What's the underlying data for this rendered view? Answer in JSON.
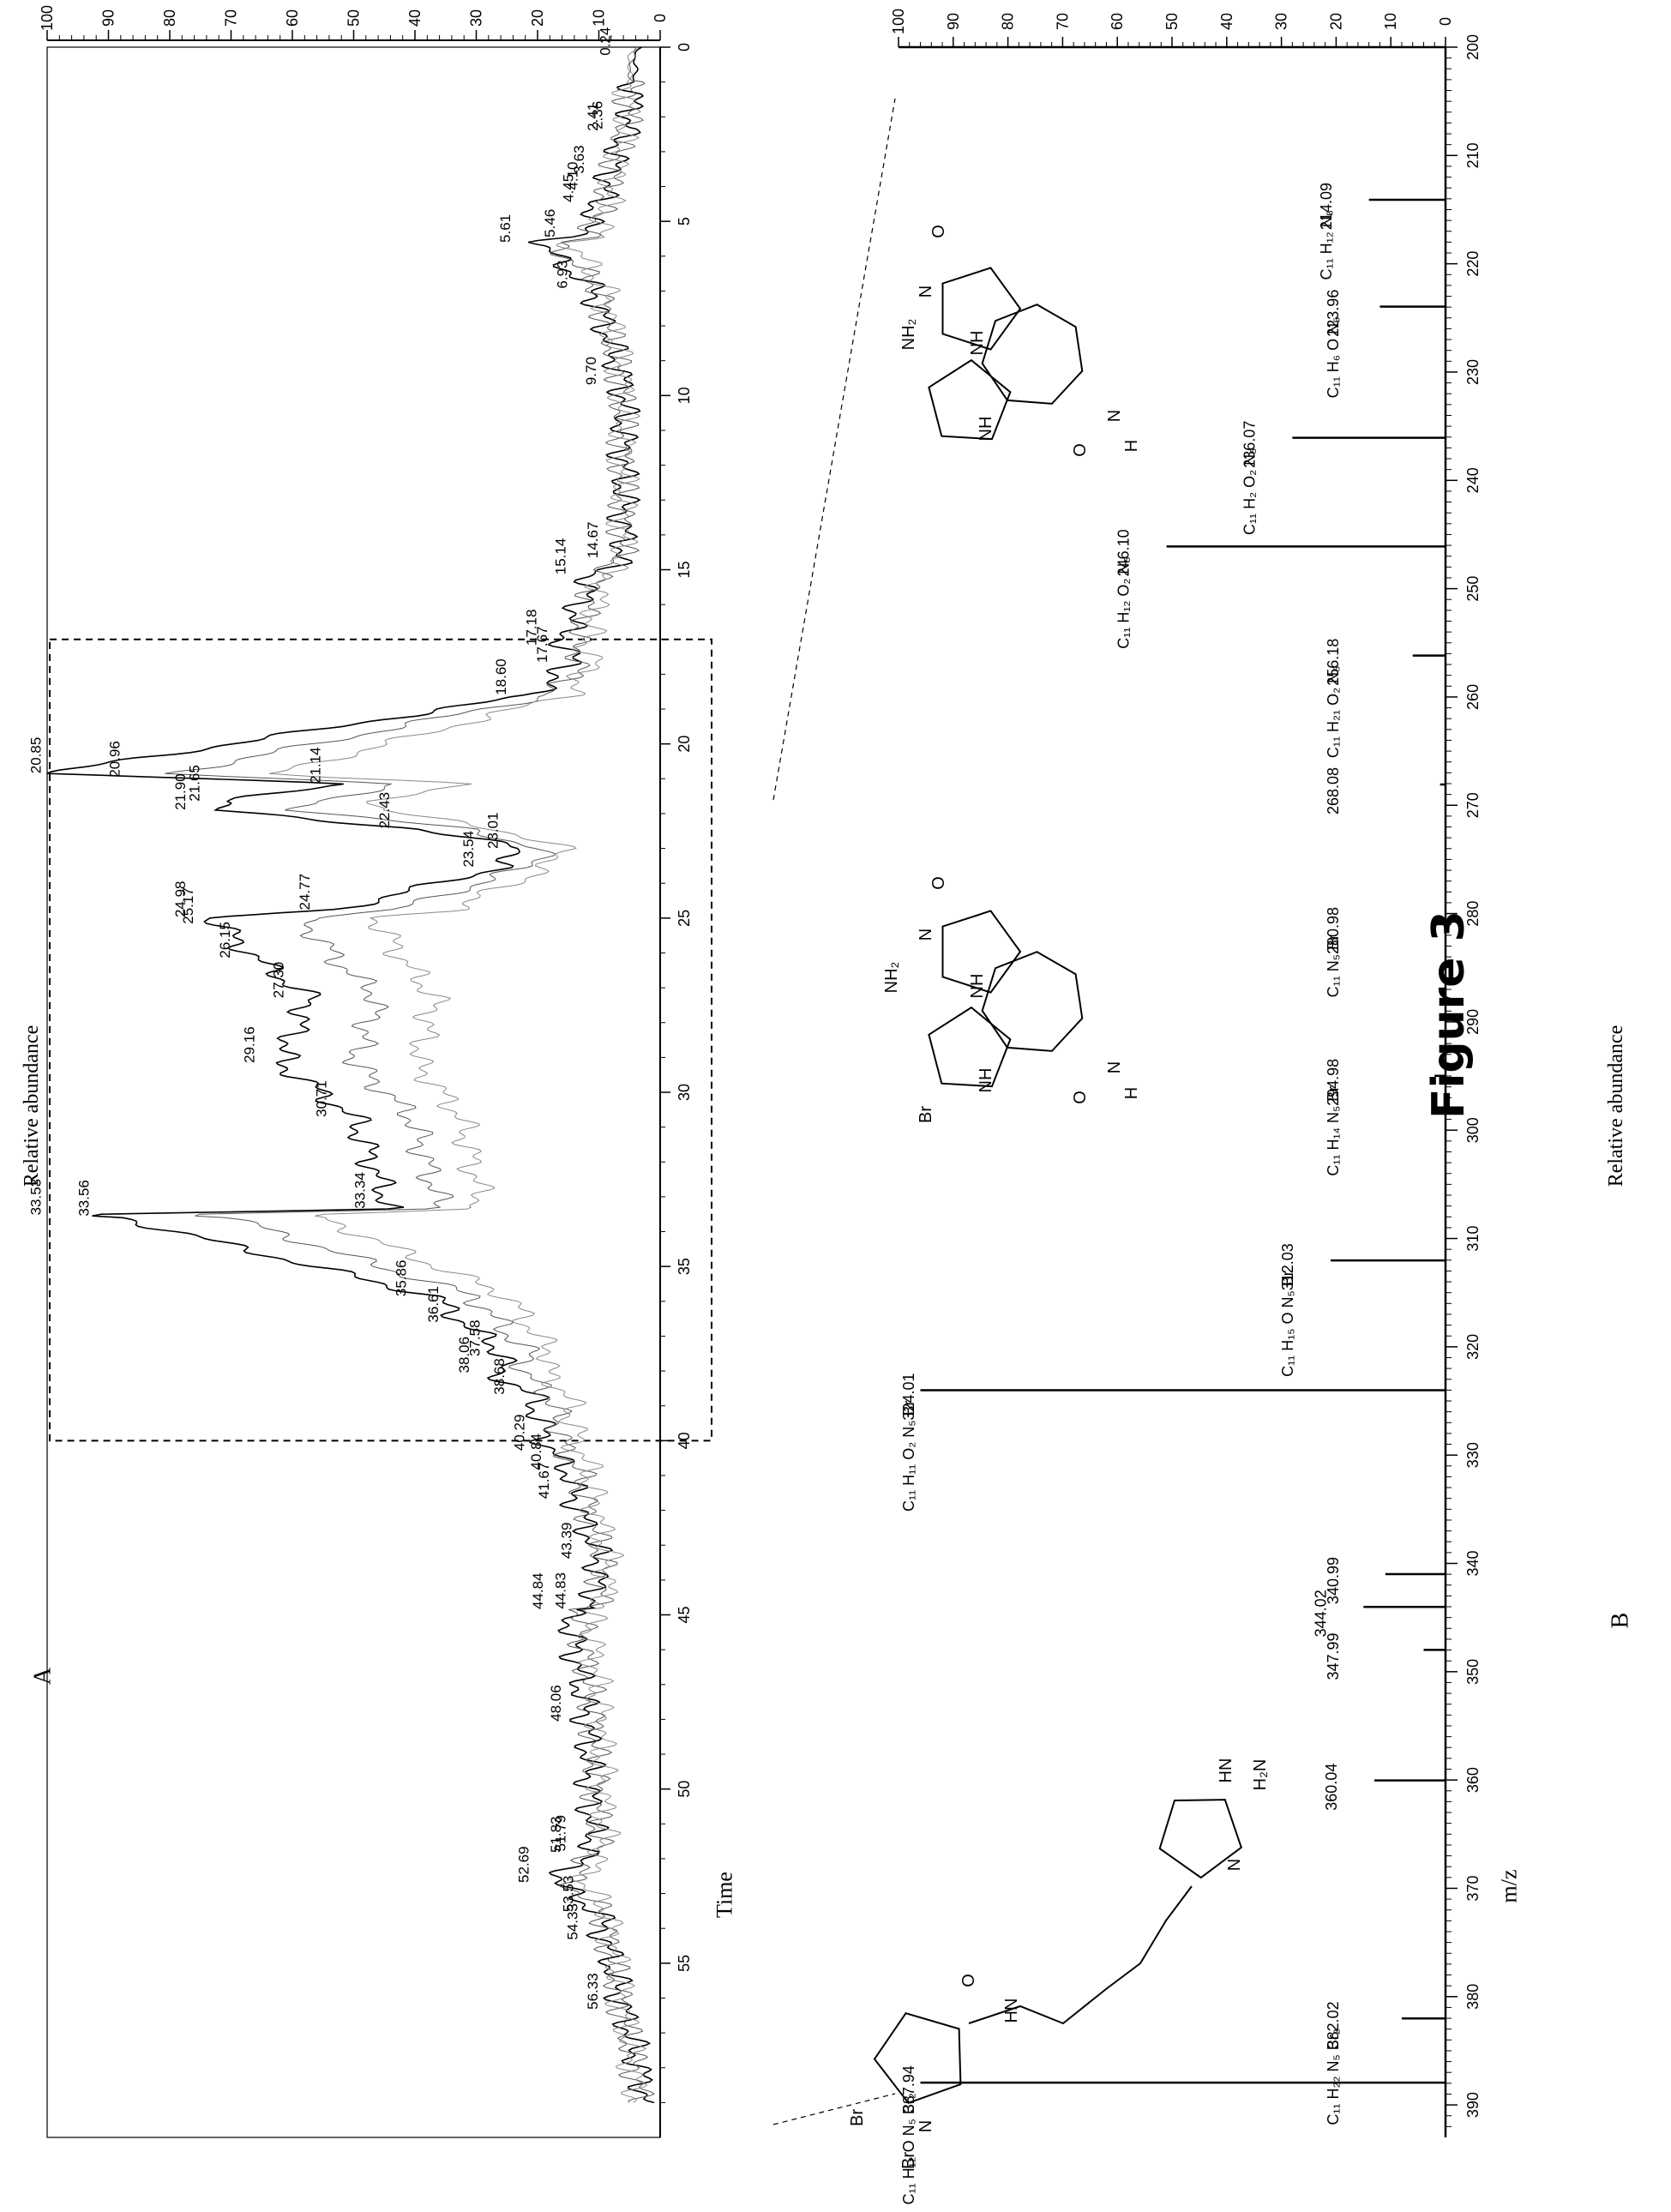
{
  "figure": {
    "title": "Figure 3"
  },
  "panels": {
    "a": {
      "label": "A",
      "xlabel": "Time",
      "ylabel": "Relative abundance",
      "y_ticks": [
        "0",
        "10",
        "20",
        "30",
        "40",
        "50",
        "60",
        "70",
        "80",
        "90",
        "100"
      ],
      "x_ticks": [
        "0",
        "5",
        "10",
        "15",
        "20",
        "25",
        "30",
        "35",
        "40",
        "45",
        "50",
        "55"
      ],
      "peak_labels": [
        "0.24",
        "2.36",
        "2.41",
        "3.63",
        "4.45",
        "4.10",
        "5.46",
        "5.61",
        "6.93",
        "9.70",
        "14.67",
        "15.14",
        "17.18",
        "17.67",
        "18.60",
        "20.85",
        "20.96",
        "21.14",
        "21.65",
        "21.90",
        "22.43",
        "23.54",
        "24.77",
        "24.98",
        "25.17",
        "23.01",
        "26.15",
        "27.30",
        "29.16",
        "30.71",
        "33.34",
        "33.53",
        "33.56",
        "35.86",
        "36.61",
        "37.58",
        "38.06",
        "38.68",
        "40.29",
        "40.84",
        "41.67",
        "43.39",
        "44.84",
        "44.83",
        "48.06",
        "51.79",
        "51.83",
        "52.69",
        "53.53",
        "54.33",
        "56.33"
      ]
    },
    "b": {
      "label": "B",
      "xlabel": "m/z",
      "ylabel": "Relative abundance",
      "y_ticks": [
        "0",
        "10",
        "20",
        "30",
        "40",
        "50",
        "60",
        "70",
        "80",
        "90",
        "100"
      ],
      "x_ticks": [
        "200",
        "210",
        "220",
        "230",
        "240",
        "250",
        "260",
        "270",
        "280",
        "290",
        "300",
        "310",
        "320",
        "330",
        "340",
        "350",
        "360",
        "370",
        "380",
        "390"
      ],
      "peaks": [
        {
          "mz": "214.09",
          "formula": "C₁₁ H₁₂ N₅"
        },
        {
          "mz": "223.96",
          "formula": "C₁₁ H₆ O N₅"
        },
        {
          "mz": "236.07",
          "formula": "C₁₁ H₂ O₂ N₅"
        },
        {
          "mz": "246.10",
          "formula": "C₁₁ H₁₂ O₂ N₅"
        },
        {
          "mz": "256.18",
          "formula": "C₁₁ H₂₁ O₂ N₅"
        },
        {
          "mz": "268.08",
          "formula": ""
        },
        {
          "mz": "280.98",
          "formula": "C₁₁ N₅ Br"
        },
        {
          "mz": "294.98",
          "formula": "C₁₁ H₁₄ N₅ Br"
        },
        {
          "mz": "312.03",
          "formula": "C₁₁ H₁₅ O N₅ Br"
        },
        {
          "mz": "324.01",
          "formula": "C₁₁ H₁₁ O₂ N₅ Br"
        },
        {
          "mz": "340.99",
          "formula": ""
        },
        {
          "mz": "344.02",
          "formula": ""
        },
        {
          "mz": "347.99",
          "formula": ""
        },
        {
          "mz": "360.04",
          "formula": ""
        },
        {
          "mz": "382.02",
          "formula": "C₁₁ H₂₂ N₅ Br₂"
        },
        {
          "mz": "387.94",
          "formula": "C₁₁ H₁₂ O N₅ Br₂"
        }
      ]
    }
  },
  "structures": {
    "s1": [
      "O",
      "N",
      "NH₂",
      "NH",
      "NH",
      "O",
      "N",
      "H"
    ],
    "s2": [
      "O",
      "N",
      "NH₂",
      "NH",
      "Br",
      "NH",
      "O",
      "N",
      "H"
    ],
    "s3": [
      "Br",
      "Br",
      "N",
      "O",
      "HN",
      "HN",
      "N",
      "H₂N"
    ]
  },
  "chart_data": [
    {
      "type": "line",
      "title": "",
      "xlabel": "Time",
      "ylabel": "Relative abundance",
      "xlim": [
        0,
        60
      ],
      "ylim": [
        0,
        100
      ],
      "series": [
        {
          "x": [
            0,
            0.24,
            2.36,
            2.41,
            3.63,
            4.1,
            4.45,
            5.46,
            5.61,
            6.93,
            9.7,
            14.67,
            15.14,
            17.18,
            17.67,
            18.6,
            20.85,
            20.96,
            21.14,
            21.65,
            21.9,
            22.43,
            23.01,
            23.54,
            24.77,
            24.98,
            25.17,
            26.15,
            27.3,
            29.16,
            30.71,
            33.34,
            33.53,
            33.56,
            35.86,
            36.61,
            37.58,
            38.06,
            38.68,
            40.29,
            40.84,
            41.67,
            43.39,
            44.83,
            44.84,
            48.06,
            51.79,
            51.83,
            52.69,
            53.53,
            54.33,
            56.33,
            59
          ],
          "y": [
            3,
            4,
            5,
            6,
            8,
            9,
            10,
            13,
            20,
            11,
            6,
            6,
            11,
            16,
            14,
            21,
            100,
            84,
            51,
            71,
            73,
            40,
            22,
            26,
            53,
            73,
            72,
            66,
            57,
            62,
            50,
            44,
            100,
            89,
            37,
            32,
            25,
            27,
            21,
            18,
            15,
            14,
            10,
            11,
            15,
            12,
            11,
            12,
            17,
            10,
            9,
            6,
            2
          ]
        }
      ]
    },
    {
      "type": "bar",
      "title": "",
      "xlabel": "m/z",
      "ylabel": "Relative abundance",
      "xlim": [
        200,
        393
      ],
      "ylim": [
        0,
        100
      ],
      "x": [
        214.09,
        223.96,
        236.07,
        246.1,
        256.18,
        268.08,
        280.98,
        294.98,
        312.03,
        324.01,
        340.99,
        344.02,
        347.99,
        360.04,
        382.02,
        387.94
      ],
      "values": [
        14,
        12,
        28,
        51,
        6,
        1,
        2,
        2,
        21,
        96,
        11,
        15,
        4,
        13,
        8,
        96
      ]
    }
  ]
}
